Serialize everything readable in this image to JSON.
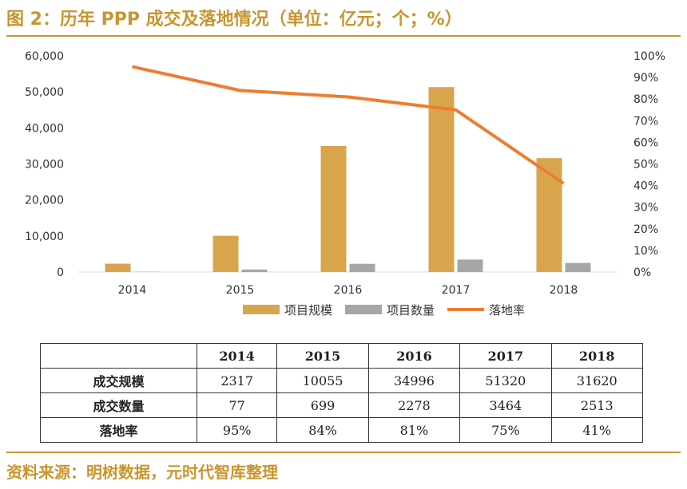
{
  "title": "图 2：历年 PPP 成交及落地情况（单位：亿元；个；%）",
  "source": "资料来源：明树数据，元时代智库整理",
  "colors": {
    "accent": "#C8962E",
    "bar_scale": "#D9A54C",
    "bar_count": "#A6A6A6",
    "line_rate": "#ED7D31"
  },
  "chart_data": {
    "type": "bar",
    "title": "",
    "categories": [
      "2014",
      "2015",
      "2016",
      "2017",
      "2018"
    ],
    "left_axis": {
      "ylim": [
        0,
        60000
      ],
      "ticks": [
        "0",
        "10,000",
        "20,000",
        "30,000",
        "40,000",
        "50,000",
        "60,000"
      ]
    },
    "right_axis": {
      "ylim": [
        0,
        100
      ],
      "ticks": [
        "0%",
        "10%",
        "20%",
        "30%",
        "40%",
        "50%",
        "60%",
        "70%",
        "80%",
        "90%",
        "100%"
      ]
    },
    "series": [
      {
        "name": "项目规模",
        "kind": "bar",
        "axis": "left",
        "values": [
          2317,
          10055,
          34996,
          51320,
          31620
        ]
      },
      {
        "name": "项目数量",
        "kind": "bar",
        "axis": "left",
        "values": [
          77,
          699,
          2278,
          3464,
          2513
        ]
      },
      {
        "name": "落地率",
        "kind": "line",
        "axis": "right",
        "values": [
          95,
          84,
          81,
          75,
          41
        ]
      }
    ],
    "legend_position": "bottom",
    "grid": false
  },
  "table": {
    "headers": [
      "",
      "2014",
      "2015",
      "2016",
      "2017",
      "2018"
    ],
    "rows": [
      {
        "label": "成交规模",
        "values": [
          "2317",
          "10055",
          "34996",
          "51320",
          "31620"
        ]
      },
      {
        "label": "成交数量",
        "values": [
          "77",
          "699",
          "2278",
          "3464",
          "2513"
        ]
      },
      {
        "label": "落地率",
        "values": [
          "95%",
          "84%",
          "81%",
          "75%",
          "41%"
        ]
      }
    ]
  }
}
